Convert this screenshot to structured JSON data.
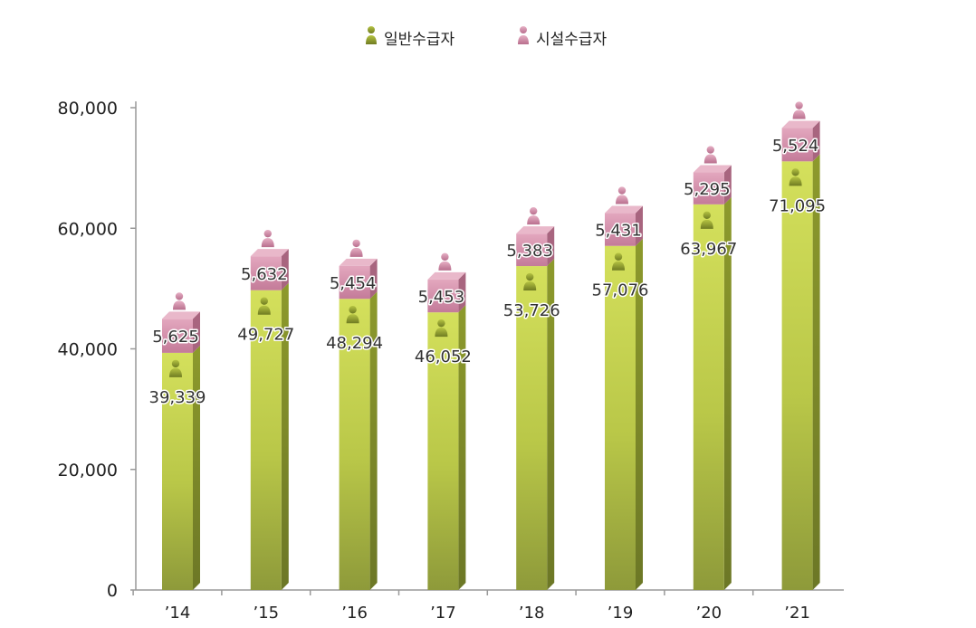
{
  "chart_data": {
    "type": "bar",
    "stacked": true,
    "categories": [
      "’14",
      "’15",
      "’16",
      "’17",
      "’18",
      "’19",
      "’20",
      "’21"
    ],
    "series": [
      {
        "name": "일반수급자",
        "values": [
          39339,
          49727,
          48294,
          46052,
          53726,
          57076,
          63967,
          71095
        ],
        "color": "#a9b83a",
        "icon": "person-icon"
      },
      {
        "name": "시설수급자",
        "values": [
          5625,
          5632,
          5454,
          5453,
          5383,
          5431,
          5295,
          5524
        ],
        "color": "#d48aa6",
        "icon": "person-icon"
      }
    ],
    "value_labels": {
      "일반수급자": [
        "39,339",
        "49,727",
        "48,294",
        "46,052",
        "53,726",
        "57,076",
        "63,967",
        "71,095"
      ],
      "시설수급자": [
        "5,625",
        "5,632",
        "5,454",
        "5,453",
        "5,383",
        "5,431",
        "5,295",
        "5,524"
      ]
    },
    "y_ticks": [
      "0",
      "20,000",
      "40,000",
      "60,000",
      "80,000"
    ],
    "y_tick_values": [
      0,
      20000,
      40000,
      60000,
      80000
    ],
    "ylim": [
      0,
      80000
    ],
    "legend_position": "top-center",
    "grid": false,
    "title": "",
    "xlabel": "",
    "ylabel": ""
  }
}
